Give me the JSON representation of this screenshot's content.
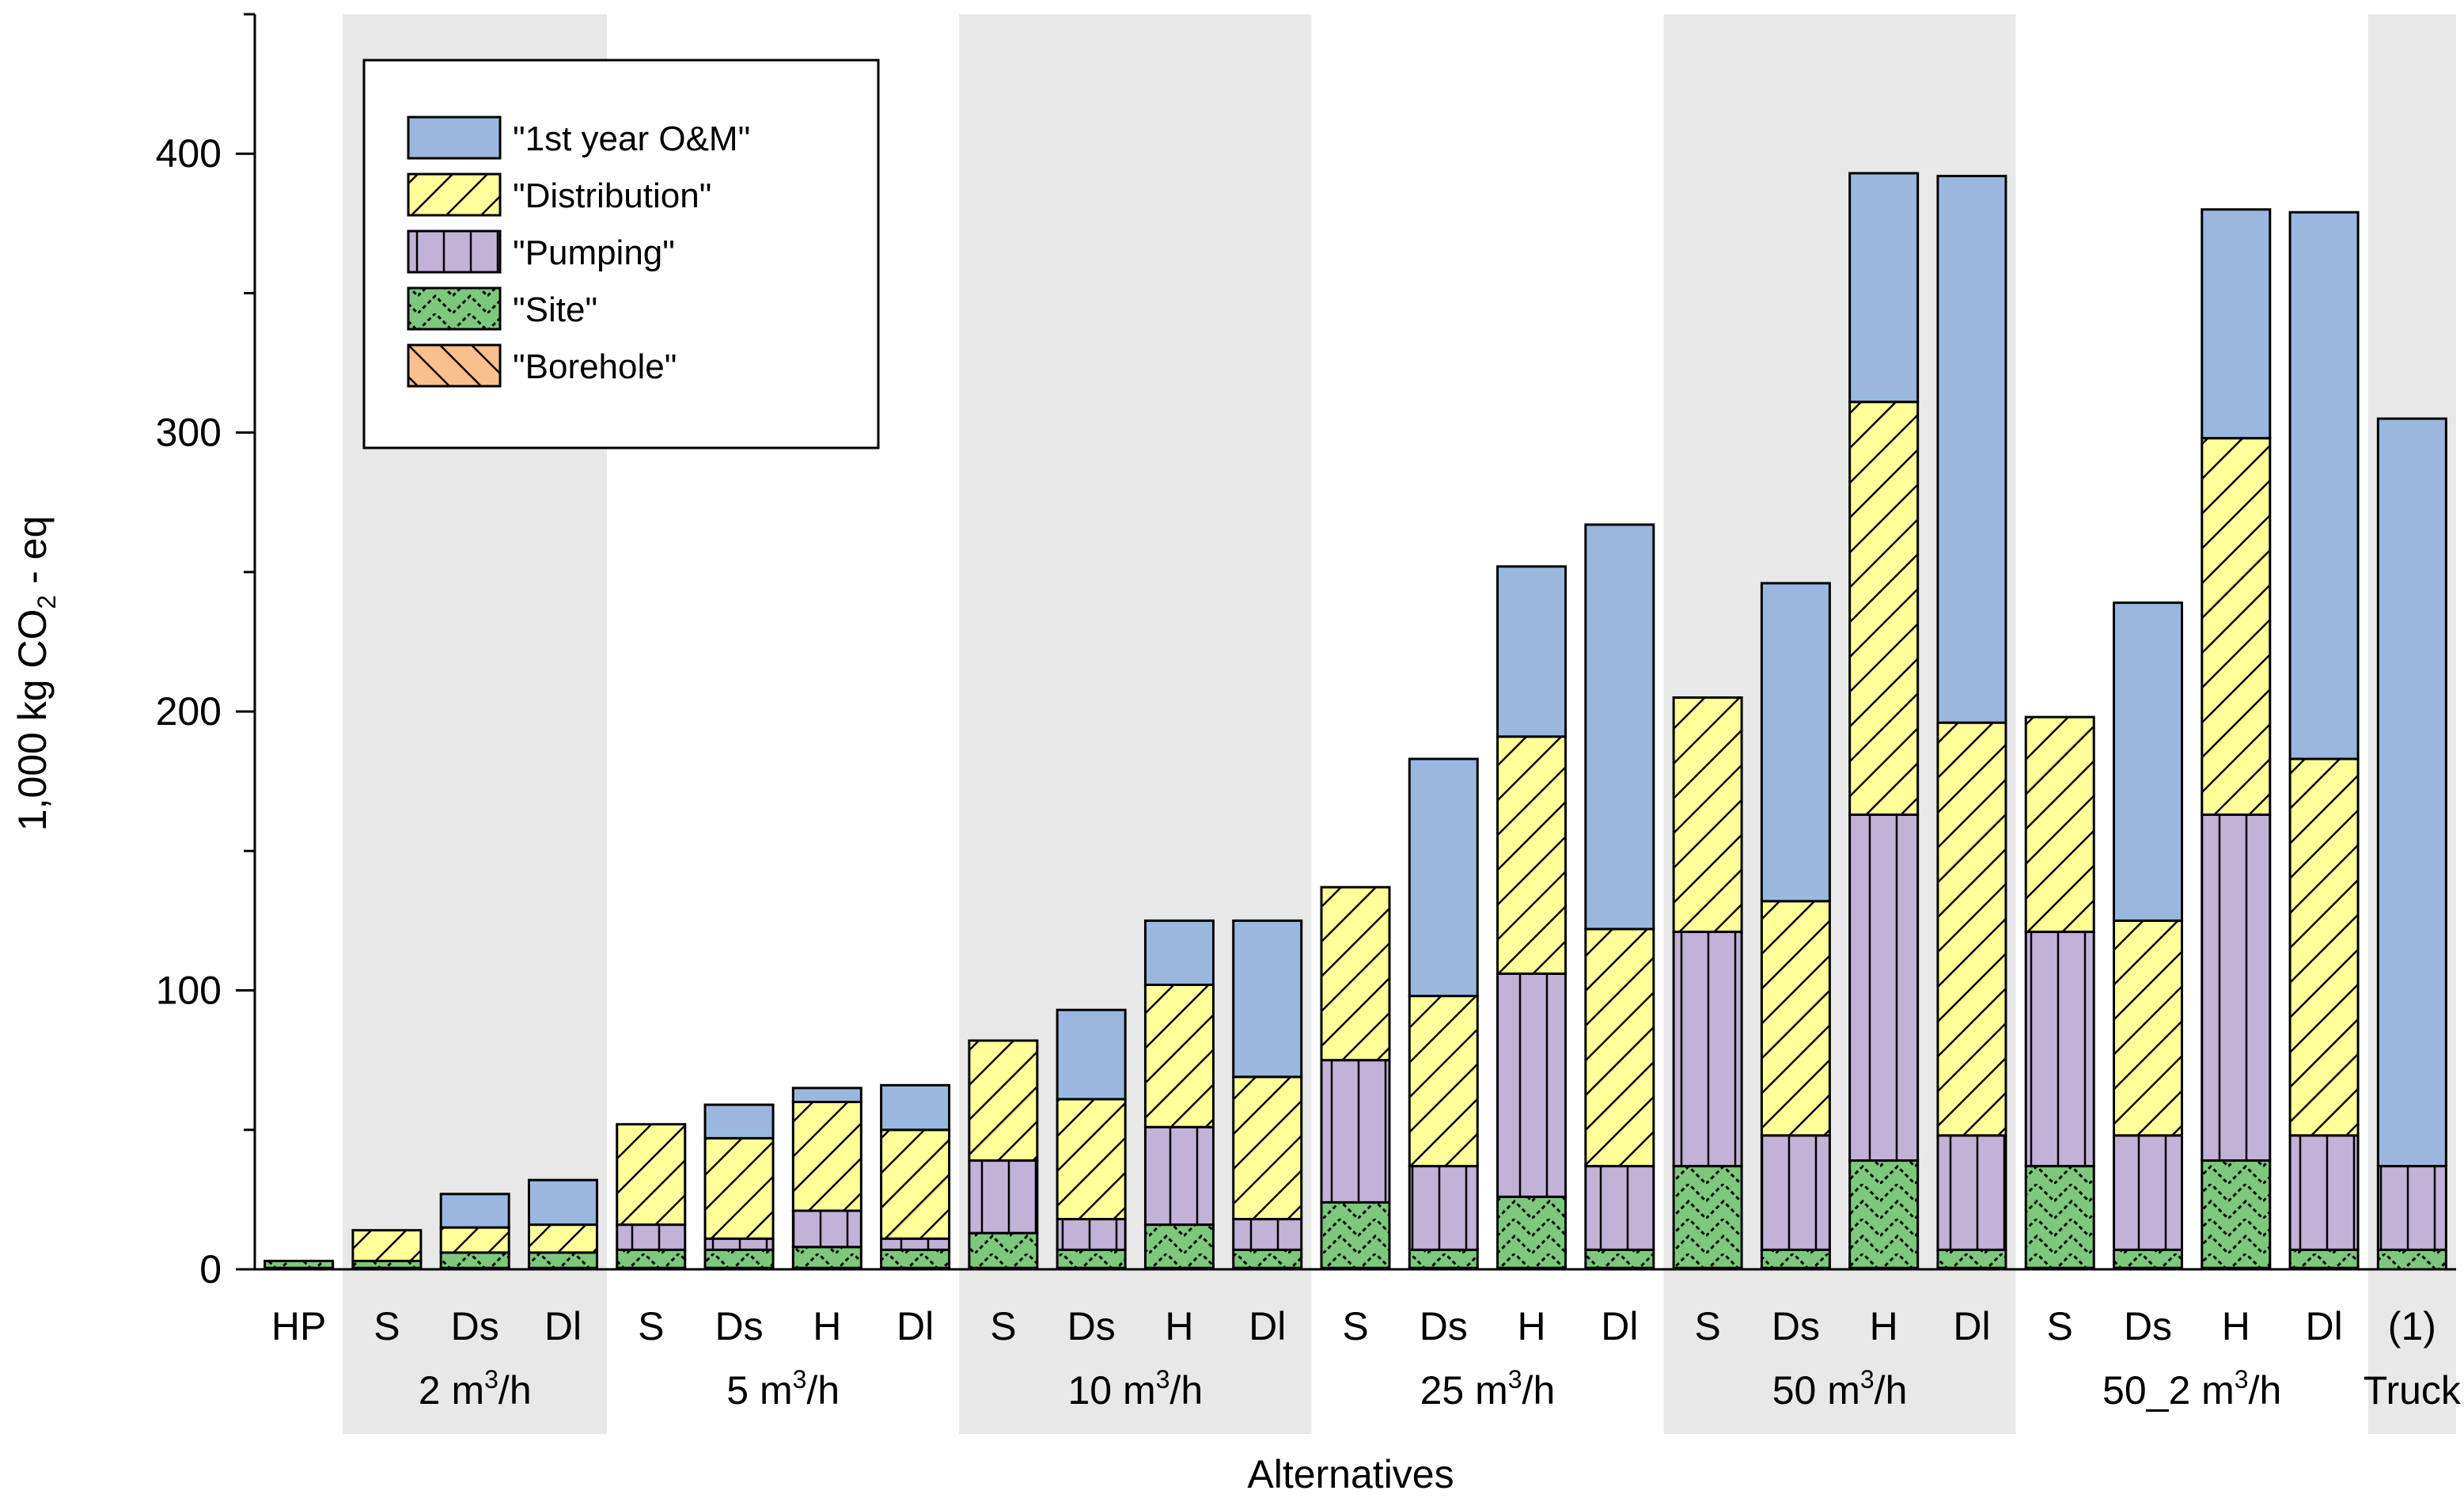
{
  "chart_data": {
    "type": "bar",
    "stacked": true,
    "title": "",
    "xlabel": "Alternatives",
    "ylabel": "1,000 kg CO2 - eq",
    "ylabel_parts": {
      "pre": "1,000 kg CO",
      "sub": "2",
      "post": " - eq"
    },
    "ylim": [
      0,
      450
    ],
    "yticks": [
      0,
      100,
      200,
      300,
      400
    ],
    "legend_position": "top-left",
    "colors": {
      "om": "#9ab8df",
      "distribution": "#ffff99",
      "pumping": "#c2b2d8",
      "site_fill": "#7dc87d",
      "site_dark": "#000000",
      "borehole": "#fbbf8c",
      "band": "#e8e8e8"
    },
    "legend": [
      {
        "key": "om",
        "label": "\"1st year O&M\""
      },
      {
        "key": "distribution",
        "label": "\"Distribution\""
      },
      {
        "key": "pumping",
        "label": "\"Pumping\""
      },
      {
        "key": "site",
        "label": "\"Site\""
      },
      {
        "key": "borehole",
        "label": "\"Borehole\""
      }
    ],
    "categories": [
      "HP",
      "S",
      "Ds",
      "Dl",
      "S",
      "Ds",
      "H",
      "Dl",
      "S",
      "Ds",
      "H",
      "Dl",
      "S",
      "Ds",
      "H",
      "Dl",
      "S",
      "Ds",
      "H",
      "Dl",
      "S",
      "Ds",
      "H",
      "Dl",
      "(1)"
    ],
    "groups": [
      {
        "base": "",
        "sup": "",
        "rest": "",
        "start": 0,
        "end": 0,
        "shaded": false
      },
      {
        "base": "2 m",
        "sup": "3",
        "rest": "/h",
        "start": 1,
        "end": 3,
        "shaded": true
      },
      {
        "base": "5 m",
        "sup": "3",
        "rest": "/h",
        "start": 4,
        "end": 7,
        "shaded": false
      },
      {
        "base": "10 m",
        "sup": "3",
        "rest": "/h",
        "start": 8,
        "end": 11,
        "shaded": true
      },
      {
        "base": "25 m",
        "sup": "3",
        "rest": "/h",
        "start": 12,
        "end": 15,
        "shaded": false
      },
      {
        "base": "50 m",
        "sup": "3",
        "rest": "/h",
        "start": 16,
        "end": 19,
        "shaded": true
      },
      {
        "base": "50_2 m",
        "sup": "3",
        "rest": "/h",
        "start": 20,
        "end": 23,
        "shaded": false
      },
      {
        "base": "Truck",
        "sup": "",
        "rest": "",
        "start": 24,
        "end": 24,
        "shaded": true
      }
    ],
    "series": [
      {
        "name": "\"Borehole\"",
        "key": "borehole",
        "values": [
          0.5,
          0.5,
          0.5,
          0.5,
          0.5,
          0.5,
          0.5,
          0.5,
          0.5,
          0.5,
          0.5,
          0.5,
          0.5,
          0.5,
          0.5,
          0.5,
          0.5,
          0.5,
          0.5,
          0.5,
          0.5,
          0.5,
          0.5,
          0.5,
          0
        ]
      },
      {
        "name": "\"Site\"",
        "key": "site",
        "values": [
          2.5,
          2.5,
          5.5,
          5.5,
          6.5,
          6.5,
          7.5,
          6.5,
          12.5,
          6.5,
          15.5,
          6.5,
          23.5,
          6.5,
          25.5,
          6.5,
          36.5,
          6.5,
          38.5,
          6.5,
          36.5,
          6.5,
          38.5,
          6.5,
          7
        ]
      },
      {
        "name": "\"Pumping\"",
        "key": "pumping",
        "values": [
          0,
          0,
          0,
          0,
          9,
          4,
          13,
          4,
          26,
          11,
          35,
          11,
          51,
          30,
          80,
          30,
          84,
          41,
          124,
          41,
          84,
          41,
          124,
          41,
          30
        ]
      },
      {
        "name": "\"Distribution\"",
        "key": "distribution",
        "values": [
          0,
          11,
          9,
          10,
          36,
          36,
          39,
          39,
          43,
          43,
          51,
          51,
          62,
          61,
          85,
          85,
          84,
          84,
          148,
          148,
          77,
          77,
          135,
          135,
          0
        ]
      },
      {
        "name": "\"1st year O&M\"",
        "key": "om",
        "values": [
          0,
          0,
          12,
          16,
          0,
          12,
          5,
          16,
          0,
          32,
          23,
          56,
          0,
          85,
          61,
          145,
          0,
          114,
          82,
          196,
          0,
          114,
          82,
          196,
          268
        ]
      }
    ]
  }
}
